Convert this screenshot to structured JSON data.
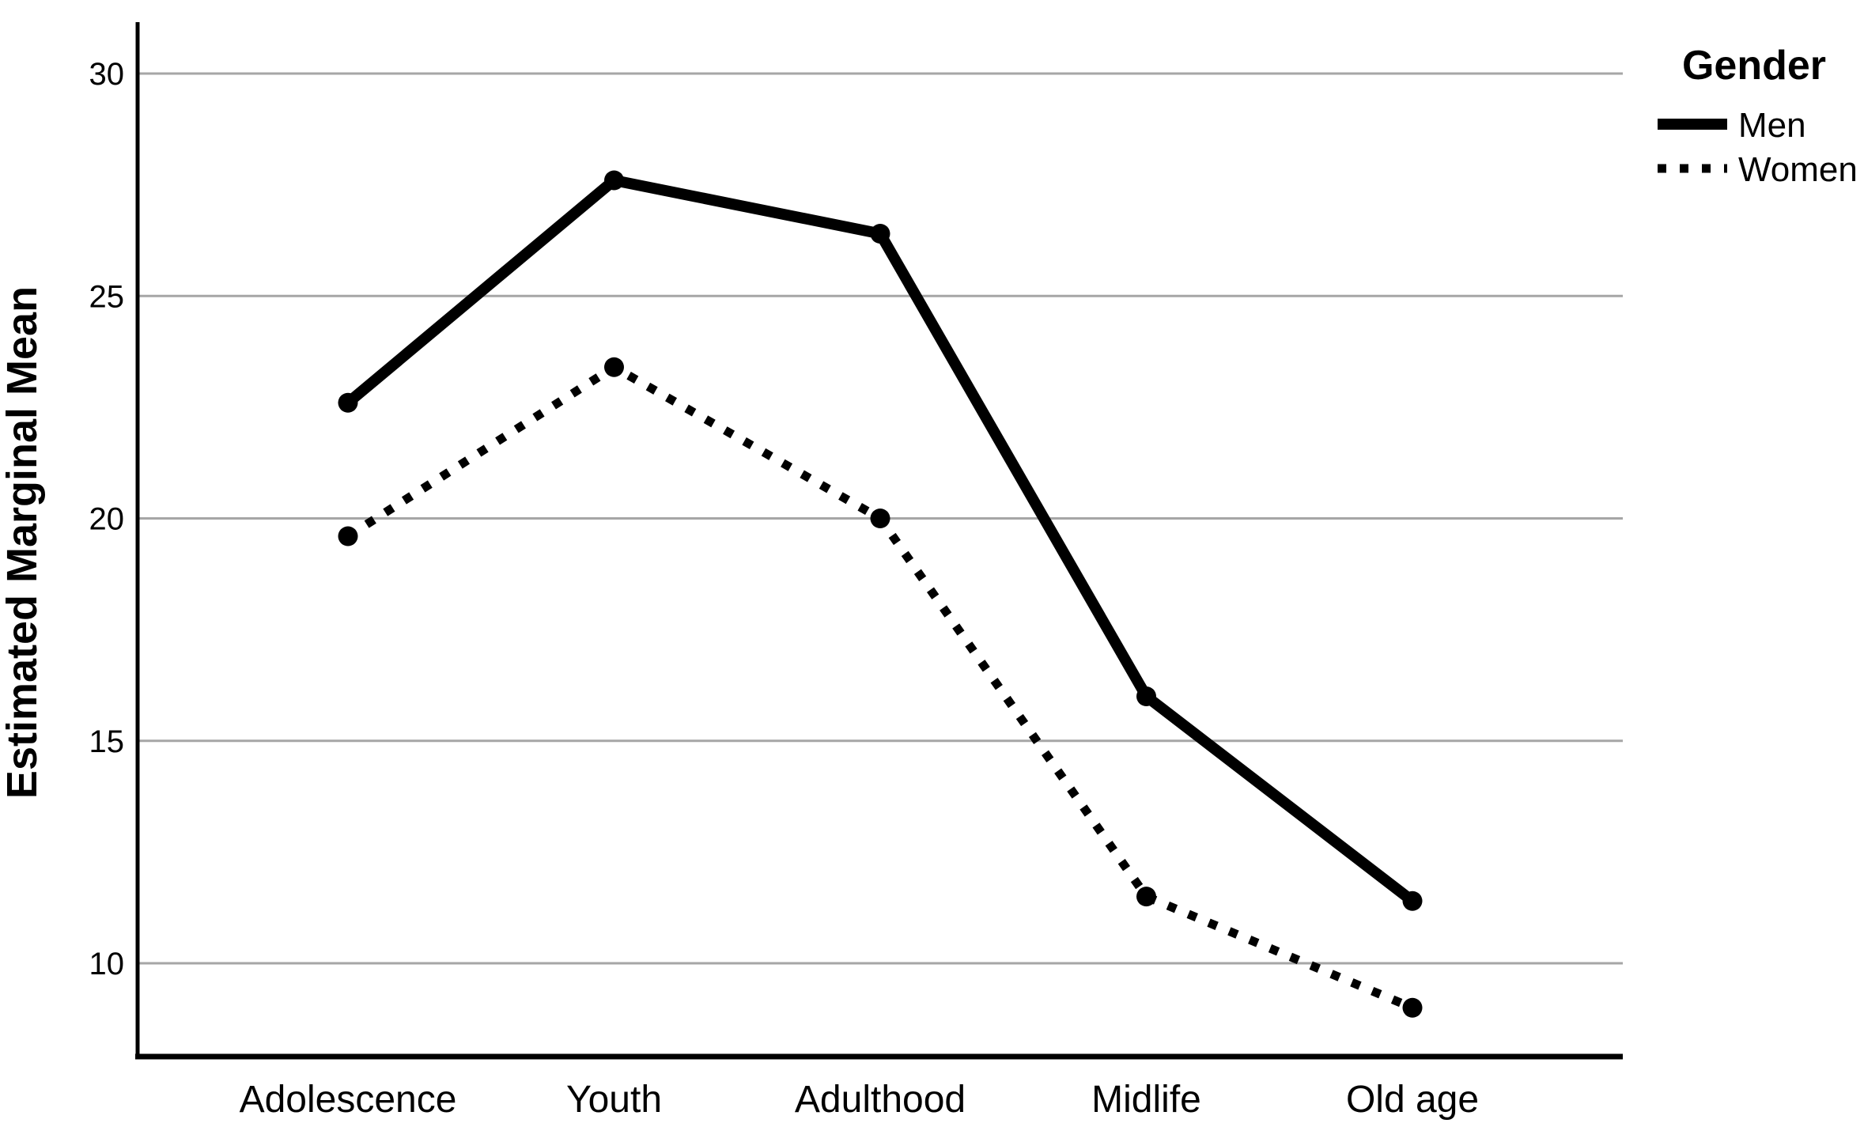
{
  "chart_data": {
    "type": "line",
    "title": "",
    "categories": [
      "Adolescence",
      "Youth",
      "Adulthood",
      "Midlife",
      "Old age"
    ],
    "series": [
      {
        "name": "Men",
        "line_style": "solid",
        "values": [
          22.6,
          27.6,
          26.4,
          16.0,
          11.4
        ]
      },
      {
        "name": "Women",
        "line_style": "dotted",
        "values": [
          19.6,
          23.4,
          20.0,
          11.5,
          9.0
        ]
      }
    ],
    "xlabel": "",
    "ylabel": "Estimated Marginal Mean",
    "yticks": [
      30,
      25,
      20,
      15,
      10
    ],
    "ylim": [
      7.9,
      31.2
    ],
    "grid": "horizontal-gridlines",
    "legend": {
      "title": "Gender",
      "position": "top-right",
      "entries": [
        "Men",
        "Women"
      ]
    },
    "colors": {
      "line": "#000000",
      "gridline": "#a6a6a6",
      "background": "#ffffff",
      "text": "#000000"
    }
  }
}
